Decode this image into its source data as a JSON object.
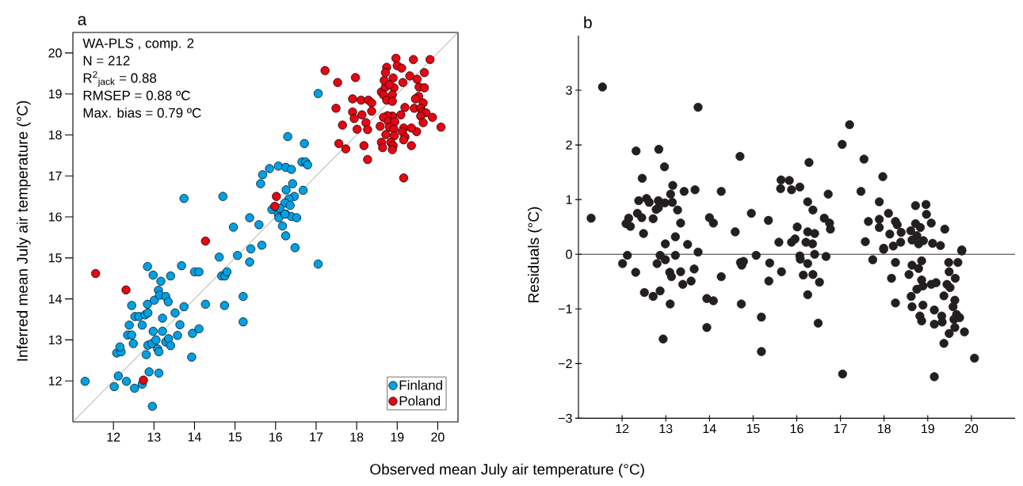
{
  "chart_data": [
    {
      "type": "scatter",
      "title": "a",
      "xlabel": "Observed mean July air temperature (°C)",
      "ylabel": "Inferred mean July air temperature (°C)",
      "annotations": [
        "WA-PLS , comp. 2",
        "N = 212",
        "R$^{2}$$_{jack}$ = 0.88",
        "RMSEP = 0.88 ºC",
        "Max. bias = 0.79 ºC"
      ],
      "xlim": [
        11,
        20.5
      ],
      "ylim": [
        11,
        20.5
      ],
      "xticks": [
        12,
        13,
        14,
        15,
        16,
        17,
        18,
        19,
        20
      ],
      "yticks": [
        12,
        13,
        14,
        15,
        16,
        17,
        18,
        19,
        20
      ],
      "legend": "bottom right",
      "series": [
        {
          "name": "Finland",
          "color": "#00a0e3",
          "marker": "circle",
          "x": [
            11.3,
            12.02,
            12.12,
            12.32,
            12.52,
            12.71,
            12.88,
            13.12,
            12.96,
            12.08,
            12.19,
            12.16,
            12.49,
            12.35,
            12.45,
            12.39,
            12.45,
            12.53,
            12.63,
            12.71,
            12.78,
            12.85,
            12.84,
            12.81,
            12.85,
            12.95,
            12.98,
            13.05,
            13.09,
            13.12,
            13.01,
            13.11,
            13.14,
            13.17,
            12.98,
            12.84,
            13.21,
            13.21,
            13.29,
            13.35,
            13.29,
            13.36,
            13.41,
            13.41,
            13.52,
            13.58,
            13.64,
            13.74,
            13.68,
            13.95,
            14.11,
            13.93,
            14.0,
            14.11,
            14.27,
            13.74,
            14.7,
            14.61,
            14.67,
            14.75,
            14.8,
            14.74,
            14.96,
            15.06,
            15.2,
            15.2,
            15.36,
            15.36,
            15.39,
            15.59,
            15.66,
            15.91,
            16.07,
            16.08,
            16.17,
            16.25,
            16.25,
            16.39,
            16.52,
            16.48,
            17.05,
            16.07,
            16.25,
            16.39,
            15.85,
            15.68,
            15.63,
            16.42,
            16.26,
            16.68,
            16.46,
            16.33,
            16.23,
            16.36,
            16.1,
            16.23,
            16.71,
            16.65,
            16.74,
            16.79,
            16.3,
            17.05
          ],
          "values": [
            11.99,
            11.86,
            12.12,
            11.99,
            11.82,
            11.92,
            12.22,
            12.19,
            11.38,
            12.68,
            12.71,
            12.83,
            12.91,
            13.12,
            13.12,
            13.36,
            13.84,
            13.57,
            13.57,
            13.36,
            13.61,
            13.66,
            13.87,
            12.64,
            12.87,
            12.91,
            13.21,
            13.0,
            12.78,
            12.71,
            13.97,
            14.21,
            14.09,
            14.43,
            14.58,
            14.79,
            13.53,
            13.21,
            14.06,
            13.93,
            12.95,
            13.03,
            12.86,
            14.56,
            13.66,
            13.11,
            13.37,
            13.81,
            14.81,
            13.16,
            13.27,
            12.58,
            14.66,
            14.66,
            13.87,
            16.45,
            16.5,
            15.02,
            14.56,
            14.56,
            14.66,
            13.84,
            15.75,
            15.06,
            14.06,
            13.44,
            15.98,
            14.9,
            15.22,
            15.81,
            15.31,
            16.18,
            16.07,
            15.98,
            15.78,
            15.54,
            16.07,
            16.01,
            15.98,
            15.25,
            14.85,
            17.24,
            17.21,
            17.16,
            17.18,
            17.03,
            16.81,
            16.81,
            16.66,
            16.65,
            16.5,
            16.44,
            16.34,
            16.28,
            16.21,
            16.07,
            17.79,
            17.34,
            17.34,
            17.27,
            17.96,
            19.01
          ]
        },
        {
          "name": "Poland",
          "color": "#e30613",
          "marker": "circle",
          "x": [
            11.56,
            12.31,
            12.74,
            14.27,
            15.98,
            16.02,
            17.22,
            17.53,
            17.97,
            17.49,
            17.65,
            17.56,
            17.73,
            17.9,
            17.9,
            17.94,
            18.11,
            18.29,
            18.37,
            18.37,
            18.13,
            18.23,
            18.01,
            18.27,
            18.18,
            18.27,
            18.61,
            18.71,
            18.66,
            18.74,
            18.68,
            18.74,
            18.71,
            18.9,
            18.97,
            19.0,
            19.11,
            18.92,
            18.81,
            18.88,
            18.88,
            19.14,
            19.31,
            19.4,
            19.81,
            19.67,
            19.49,
            19.54,
            19.67,
            19.53,
            19.45,
            19.64,
            19.42,
            19.58,
            19.62,
            19.71,
            19.58,
            19.87,
            19.64,
            19.48,
            20.08,
            19.19,
            19.09,
            18.88,
            18.76,
            18.66,
            18.78,
            18.94,
            18.58,
            18.81,
            18.92,
            19.16,
            19.35,
            19.13,
            19.19,
            18.72,
            18.93,
            18.61,
            18.84,
            18.9,
            18.64,
            18.88,
            19.16,
            19.35,
            19.16
          ],
          "values": [
            14.62,
            14.22,
            12.02,
            15.41,
            16.26,
            16.5,
            19.57,
            19.28,
            19.4,
            18.65,
            18.24,
            17.79,
            17.66,
            18.88,
            18.56,
            18.4,
            18.85,
            18.85,
            18.78,
            18.58,
            18.49,
            18.3,
            18.14,
            18.13,
            17.74,
            17.4,
            19.05,
            19.17,
            18.98,
            18.85,
            19.33,
            19.65,
            19.52,
            19.39,
            19.87,
            19.69,
            19.63,
            19.15,
            19.23,
            18.98,
            18.82,
            19.28,
            19.44,
            19.84,
            19.84,
            19.52,
            19.36,
            19.17,
            19.15,
            18.94,
            18.88,
            18.78,
            18.65,
            18.65,
            18.56,
            18.54,
            18.46,
            18.43,
            18.3,
            18.08,
            18.19,
            18.67,
            18.49,
            18.46,
            18.47,
            18.43,
            18.33,
            18.32,
            18.21,
            18.19,
            18.14,
            18.17,
            18.17,
            18.08,
            17.95,
            18.01,
            17.98,
            17.82,
            17.82,
            17.74,
            17.69,
            17.64,
            17.88,
            17.74,
            16.95
          ]
        },
        {
          "type": "line",
          "color": "#999999",
          "marker": "none",
          "x": [
            11,
            20.5
          ],
          "values": [
            11,
            20.5
          ]
        }
      ]
    },
    {
      "type": "scatter",
      "title": "b",
      "ylabel": "Residuals (°C)",
      "xlim": [
        11,
        21
      ],
      "ylim": [
        -3,
        4
      ],
      "xticks": [
        12,
        13,
        14,
        15,
        16,
        17,
        18,
        19,
        20
      ],
      "yticks": [
        {
          "value": -3,
          "label": "−3"
        },
        {
          "value": -2,
          "label": "−2"
        },
        {
          "value": -1,
          "label": "−1"
        },
        0,
        1,
        2,
        3
      ],
      "ref_lines": [
        {
          "axis": "y",
          "value": 0,
          "color": "#000000"
        }
      ],
      "series": [
        {
          "color": "#231f20",
          "marker": "circle",
          "x": [
            11.29,
            11.55,
            13.74,
            12.32,
            12.84,
            12.97,
            12.46,
            12.38,
            12.56,
            12.62,
            12.83,
            13.16,
            13.11,
            13.42,
            13.67,
            12.98,
            13.15,
            12.83,
            12.78,
            13.27,
            12.35,
            12.45,
            12.71,
            12.15,
            12.09,
            12.19,
            12.49,
            13.34,
            12.99,
            13.22,
            13.5,
            14.27,
            14.0,
            14.09,
            14.59,
            14.7,
            14.96,
            15.35,
            15.59,
            15.64,
            15.83,
            15.63,
            15.88,
            16.07,
            16.28,
            16.25,
            16.37,
            16.72,
            16.63,
            16.75,
            16.77,
            16.01,
            15.96,
            15.88,
            16.25,
            16.41,
            16.21,
            16.36,
            17.04,
            17.21,
            17.54,
            17.97,
            17.47,
            17.89,
            17.64,
            17.89,
            17.89,
            18.1,
            18.26,
            18.3,
            18.13,
            18.39,
            17.57,
            17.99,
            18.21,
            18.38,
            18.72,
            18.96,
            18.97,
            19.08,
            19.39,
            18.72,
            18.61,
            18.83,
            18.75,
            18.64,
            18.9,
            19.11,
            19.29,
            18.79,
            19.78,
            12.01,
            12.12,
            12.31,
            12.51,
            12.71,
            12.87,
            12.8,
            12.87,
            12.99,
            13.09,
            13.13,
            13.22,
            13.34,
            13.39,
            13.58,
            13.65,
            13.74,
            13.1,
            12.94,
            13.94,
            14.09,
            13.94,
            14.27,
            14.71,
            14.78,
            14.74,
            14.73,
            15.07,
            15.38,
            15.36,
            15.19,
            15.19,
            15.65,
            16.07,
            16.08,
            16.25,
            16.15,
            16.37,
            16.41,
            16.52,
            16.67,
            16.25,
            16.49,
            17.05,
            17.74,
            17.99,
            18.26,
            18.17,
            18.26,
            18.57,
            18.64,
            18.79,
            18.86,
            18.62,
            18.75,
            18.89,
            18.86,
            18.64,
            18.89,
            18.82,
            18.86,
            19.08,
            19.19,
            19.15,
            19.15,
            19.32,
            19.33,
            19.37,
            19.37,
            19.15,
            19.44,
            19.49,
            19.48,
            19.51,
            19.63,
            19.62,
            19.58,
            19.66,
            19.69,
            19.6,
            19.73,
            19.62,
            19.49,
            19.84,
            20.07,
            19.78
          ],
          "values": [
            0.66,
            3.06,
            2.69,
            1.89,
            1.92,
            1.6,
            1.39,
            0.98,
            1.02,
            0.95,
            0.98,
            1.26,
            1.1,
            1.15,
            1.18,
            0.94,
            0.95,
            0.85,
            0.82,
            0.81,
            0.75,
            0.67,
            0.65,
            0.66,
            0.56,
            0.51,
            0.38,
            0.57,
            0.19,
            0.32,
            0.18,
            1.15,
            0.67,
            0.57,
            0.41,
            1.79,
            0.75,
            0.62,
            0.22,
            1.36,
            1.35,
            1.2,
            1.18,
            1.23,
            1.68,
            0.96,
            0.81,
            1.1,
            0.66,
            0.57,
            0.46,
            0.5,
            0.28,
            0.22,
            0.41,
            0.38,
            0.22,
            0.19,
            2.01,
            2.37,
            1.74,
            1.42,
            1.15,
            0.96,
            0.6,
            0.64,
            0.49,
            0.75,
            0.6,
            0.54,
            0.37,
            0.4,
            0.23,
            0.11,
            0.15,
            0.22,
            0.89,
            0.91,
            0.73,
            0.57,
            0.46,
            0.56,
            0.43,
            0.49,
            0.34,
            0.26,
            0.25,
            0.2,
            0.16,
            0.19,
            0.08,
            -0.17,
            -0.02,
            -0.33,
            -0.7,
            -0.77,
            -0.67,
            -0.17,
            -0.02,
            -0.1,
            -0.33,
            -0.41,
            -0.02,
            -0.32,
            -0.55,
            -0.49,
            -0.27,
            0.04,
            -0.91,
            -1.55,
            -0.81,
            -0.85,
            -1.34,
            -0.41,
            -0.15,
            -0.13,
            -0.2,
            -0.91,
            -0.02,
            -0.16,
            -0.49,
            -1.15,
            -1.78,
            -0.32,
            -0.03,
            -0.09,
            -0.17,
            -0.38,
            -0.37,
            0.0,
            -0.51,
            -0.04,
            -0.74,
            -1.26,
            -2.19,
            -0.1,
            0.09,
            -0.15,
            -0.44,
            -0.89,
            -0.37,
            -0.2,
            -0.26,
            -0.12,
            -0.77,
            -0.64,
            -0.58,
            -0.47,
            -0.96,
            -0.93,
            -1.13,
            -1.22,
            -0.55,
            -0.52,
            -1.02,
            -1.28,
            -1.13,
            -1.24,
            -0.76,
            -1.63,
            -2.24,
            -0.55,
            -0.32,
            -0.15,
            -0.61,
            -0.44,
            -0.84,
            -0.96,
            -1.1,
            -0.15,
            -1.19,
            -1.16,
            -1.34,
            -1.45,
            -1.42,
            -1.9,
            0.06
          ]
        }
      ]
    }
  ]
}
